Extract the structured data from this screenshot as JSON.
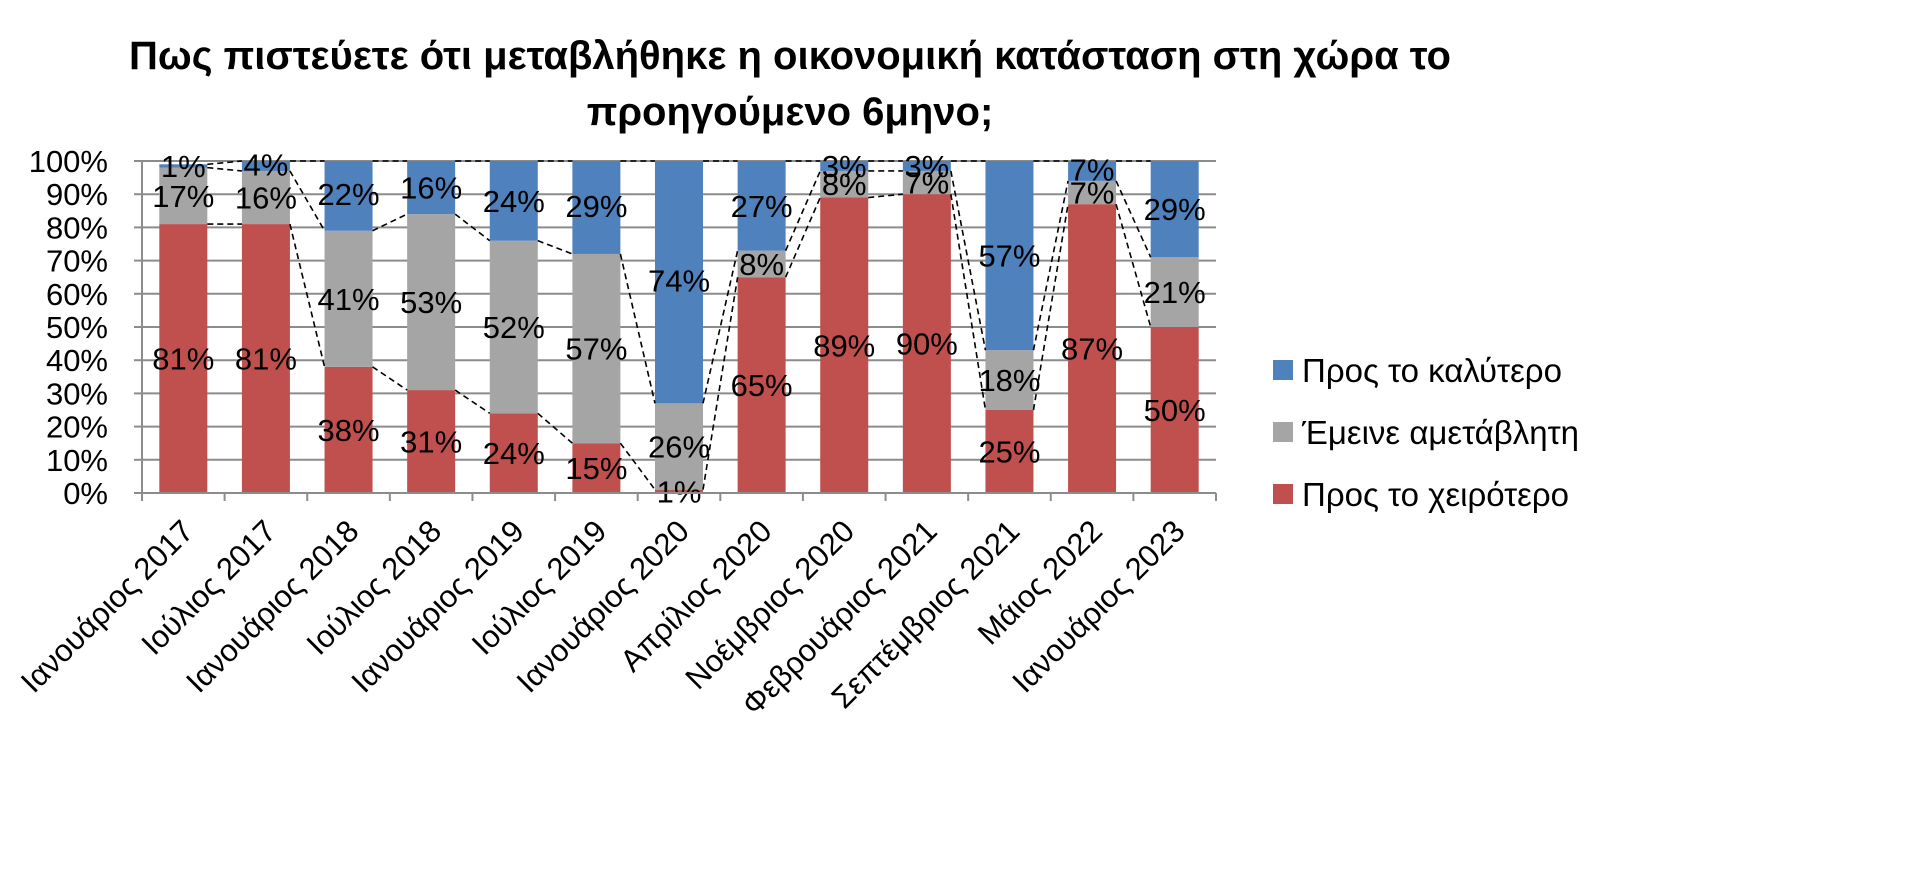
{
  "chart_data": {
    "type": "bar",
    "stacked": true,
    "title_lines": [
      "Πως πιστεύετε ότι μεταβλήθηκε η οικονομική κατάσταση στη χώρα το",
      "προηγούμενο 6μηνο;"
    ],
    "categories": [
      "Ιανουάριος 2017",
      "Ιούλιος 2017",
      "Ιανουάριος 2018",
      "Ιούλιος 2018",
      "Ιανουάριος 2019",
      "Ιούλιος 2019",
      "Ιανουάριος 2020",
      "Απρίλιος 2020",
      "Νοέμβριος 2020",
      "Φεβρουάριος 2021",
      "Σεπτέμβριος 2021",
      "Μάιος 2022",
      "Ιανουάριος 2023"
    ],
    "series": [
      {
        "name": "Προς το χειρότερο",
        "color": "#C0504D",
        "values": [
          81,
          81,
          38,
          31,
          24,
          15,
          1,
          65,
          89,
          90,
          25,
          87,
          50
        ],
        "labels": [
          "81%",
          "81%",
          "38%",
          "31%",
          "24%",
          "15%",
          "1%",
          "65%",
          "89%",
          "90%",
          "25%",
          "87%",
          "50%"
        ]
      },
      {
        "name": "Έμεινε αμετάβλητη",
        "color": "#A5A5A5",
        "values": [
          17,
          16,
          41,
          53,
          52,
          57,
          26,
          8,
          8,
          7,
          18,
          7,
          21
        ],
        "labels": [
          "17%",
          "16%",
          "41%",
          "53%",
          "52%",
          "57%",
          "26%",
          "8%",
          "8%",
          "7%",
          "18%",
          "7%",
          "21%"
        ]
      },
      {
        "name": "Προς το καλύτερο",
        "color": "#4F81BD",
        "values": [
          1,
          4,
          22,
          16,
          24,
          29,
          74,
          27,
          3,
          3,
          57,
          7,
          29
        ],
        "labels": [
          "1%",
          "4%",
          "22%",
          "16%",
          "24%",
          "29%",
          "74%",
          "27%",
          "3%",
          "3%",
          "57%",
          "7%",
          "29%"
        ]
      }
    ],
    "y_ticks": [
      "0%",
      "10%",
      "20%",
      "30%",
      "40%",
      "50%",
      "60%",
      "70%",
      "80%",
      "90%",
      "100%"
    ],
    "ylim": [
      0,
      100
    ],
    "grid": true,
    "series_lines": "dashed",
    "legend_position": "right"
  }
}
